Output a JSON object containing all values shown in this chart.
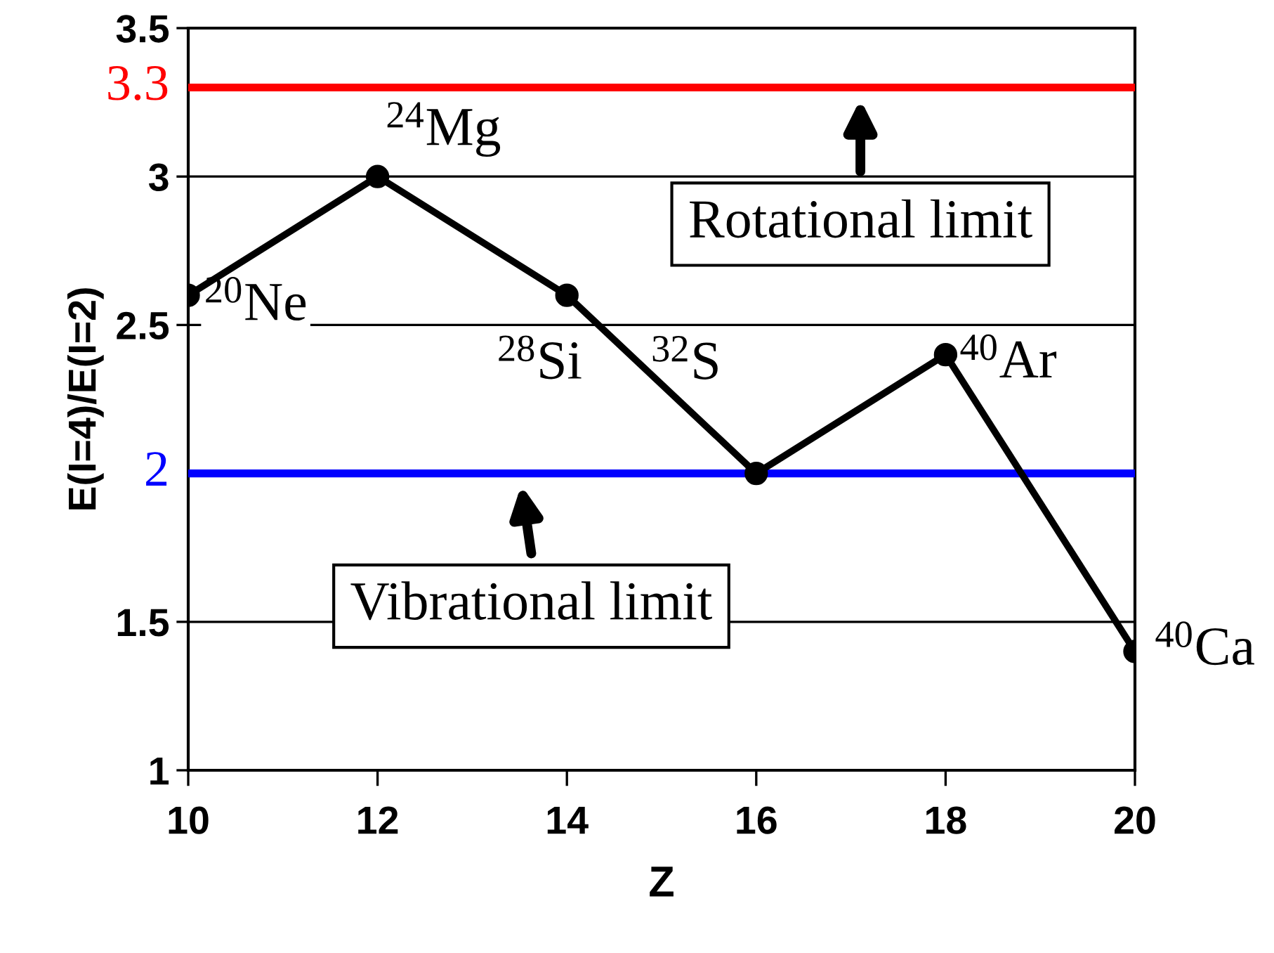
{
  "chart_data": {
    "type": "line",
    "xlabel": "Z",
    "ylabel": "E(I=4)/E(I=2)",
    "x": [
      10,
      12,
      14,
      16,
      18,
      20
    ],
    "series": [
      {
        "color": "#000000",
        "values": [
          2.6,
          3.0,
          2.6,
          2.0,
          2.4,
          1.4
        ]
      }
    ],
    "marker": "circle",
    "line_style": "solid",
    "xlim": [
      10,
      20
    ],
    "xticks": [
      10,
      12,
      14,
      16,
      18,
      20
    ],
    "ylim": [
      1,
      3.5
    ],
    "yticks": [
      1,
      1.5,
      2.5,
      3,
      3.5
    ],
    "grid": "y",
    "legend": false,
    "ref_lines": [
      {
        "axis": "y",
        "value": 3.3,
        "label": "3.3",
        "color": "#ff0000"
      },
      {
        "axis": "y",
        "value": 2,
        "label": "2",
        "color": "#0000ff"
      }
    ],
    "annotations": [
      {
        "text": "$^{20}$Ne",
        "x": 10,
        "y": 2.6
      },
      {
        "text": "$^{24}$Mg",
        "x": 12,
        "y": 3.0
      },
      {
        "text": "$^{28}$Si",
        "x": 14,
        "y": 2.6
      },
      {
        "text": "$^{32}$S",
        "x": 16,
        "y": 2.0
      },
      {
        "text": "$^{40}$Ar",
        "x": 18,
        "y": 2.4
      },
      {
        "text": "$^{40}$Ca",
        "x": 20,
        "y": 1.4
      },
      {
        "text": "Rotational limit",
        "x": 17.1,
        "y": 3.3
      },
      {
        "text": "Vibrational limit",
        "x": 13.5,
        "y": 2
      }
    ]
  }
}
